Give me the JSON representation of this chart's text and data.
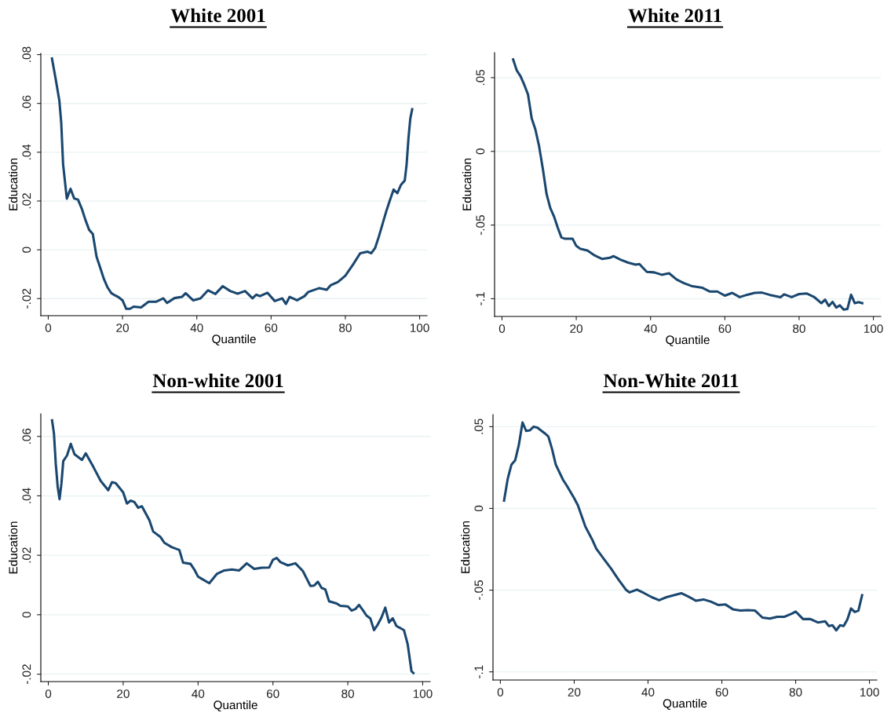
{
  "chart_data": [
    {
      "type": "line",
      "title": "White 2001",
      "xlabel": "Quantile",
      "ylabel": "Education",
      "grid": "y",
      "xlim": [
        -2,
        102
      ],
      "ylim": [
        -0.027,
        0.0805
      ],
      "xticks": [
        0,
        20,
        40,
        60,
        80,
        100
      ],
      "yticks": [
        {
          "value": -0.02,
          "label": "-.02"
        },
        0,
        {
          "value": 0.02,
          "label": ".02"
        },
        {
          "value": 0.04,
          "label": ".04"
        },
        {
          "value": 0.06,
          "label": ".06"
        },
        {
          "value": 0.08,
          "label": ".08"
        }
      ],
      "series": [
        {
          "color": "#1a476f",
          "x": [
            1,
            2,
            3,
            3.5,
            4,
            5,
            6,
            7,
            8,
            9,
            10,
            11,
            12,
            13,
            14,
            15,
            16,
            17,
            18,
            19,
            20,
            21,
            22,
            23,
            25,
            27,
            29,
            31,
            32,
            34,
            36,
            37,
            39,
            41,
            43,
            45,
            47,
            49,
            51,
            53,
            55,
            56,
            57,
            59,
            61,
            63,
            64,
            65,
            67,
            69,
            70,
            73,
            75,
            76,
            78,
            80,
            82,
            84,
            86,
            87,
            88,
            89,
            91,
            92,
            93,
            94,
            95,
            96,
            96.5,
            97,
            97.5,
            98
          ],
          "values": [
            0.0784,
            0.07,
            0.061,
            0.052,
            0.035,
            0.021,
            0.025,
            0.021,
            0.0206,
            0.017,
            0.0123,
            0.0082,
            0.0065,
            -0.0028,
            -0.0074,
            -0.012,
            -0.0155,
            -0.0178,
            -0.0187,
            -0.0195,
            -0.0207,
            -0.0242,
            -0.0242,
            -0.0233,
            -0.0236,
            -0.0213,
            -0.0213,
            -0.0199,
            -0.0218,
            -0.0198,
            -0.0193,
            -0.0178,
            -0.0207,
            -0.0199,
            -0.0166,
            -0.0181,
            -0.0149,
            -0.0169,
            -0.018,
            -0.0169,
            -0.0199,
            -0.0184,
            -0.019,
            -0.0176,
            -0.021,
            -0.0199,
            -0.0222,
            -0.0193,
            -0.0207,
            -0.019,
            -0.0173,
            -0.0157,
            -0.0164,
            -0.0146,
            -0.0132,
            -0.0106,
            -0.0062,
            -0.0014,
            -0.0008,
            -0.0014,
            0.0007,
            0.0053,
            0.0157,
            0.0203,
            0.0247,
            0.0232,
            0.0267,
            0.0284,
            0.035,
            0.0458,
            0.0539,
            0.0576
          ]
        }
      ]
    },
    {
      "type": "line",
      "title": "White 2011",
      "xlabel": "Quantile",
      "ylabel": "Education",
      "grid": "y",
      "xlim": [
        -2,
        102
      ],
      "ylim": [
        -0.112,
        0.067
      ],
      "xticks": [
        0,
        20,
        40,
        60,
        80,
        100
      ],
      "yticks": [
        {
          "value": -0.1,
          "label": "-.1"
        },
        {
          "value": -0.05,
          "label": "-.05"
        },
        0,
        {
          "value": 0.05,
          "label": ".05"
        }
      ],
      "series": [
        {
          "color": "#1a476f",
          "x": [
            3,
            4,
            5,
            6,
            7,
            8,
            9,
            10,
            11,
            12,
            13,
            14,
            15,
            16,
            17,
            19,
            20,
            21,
            23,
            25,
            27,
            29,
            30,
            32,
            34,
            36,
            37,
            39,
            41,
            43,
            45,
            47,
            49,
            51,
            54,
            56,
            58,
            60,
            62,
            64,
            66,
            68,
            70,
            72,
            75,
            76,
            78,
            80,
            82,
            84,
            86,
            87,
            88,
            89,
            90,
            91,
            92,
            93,
            94,
            95,
            96,
            97
          ],
          "values": [
            0.0624,
            0.0548,
            0.051,
            0.0452,
            0.0386,
            0.0224,
            0.0148,
            0.0034,
            -0.0118,
            -0.0289,
            -0.0384,
            -0.0441,
            -0.0517,
            -0.0584,
            -0.0593,
            -0.0593,
            -0.0641,
            -0.066,
            -0.0673,
            -0.0707,
            -0.073,
            -0.0722,
            -0.0711,
            -0.0736,
            -0.0755,
            -0.0768,
            -0.0764,
            -0.0818,
            -0.0821,
            -0.0837,
            -0.0827,
            -0.0869,
            -0.0894,
            -0.0913,
            -0.0926,
            -0.0951,
            -0.0951,
            -0.0979,
            -0.096,
            -0.0989,
            -0.0973,
            -0.096,
            -0.0958,
            -0.0973,
            -0.0989,
            -0.097,
            -0.0989,
            -0.0968,
            -0.0964,
            -0.0987,
            -0.103,
            -0.1006,
            -0.1049,
            -0.1021,
            -0.1059,
            -0.1045,
            -0.1074,
            -0.107,
            -0.0973,
            -0.103,
            -0.1023,
            -0.103
          ]
        }
      ]
    },
    {
      "type": "line",
      "title": "Non-white 2001",
      "xlabel": "Quantile",
      "ylabel": "Education",
      "grid": "y",
      "xlim": [
        -2,
        102
      ],
      "ylim": [
        -0.0225,
        0.0676
      ],
      "xticks": [
        0,
        20,
        40,
        60,
        80,
        100
      ],
      "yticks": [
        {
          "value": -0.02,
          "label": "-.02"
        },
        0,
        {
          "value": 0.02,
          "label": ".02"
        },
        {
          "value": 0.04,
          "label": ".04"
        },
        {
          "value": 0.06,
          "label": ".06"
        }
      ],
      "series": [
        {
          "color": "#1a476f",
          "x": [
            1,
            1.5,
            2,
            2.5,
            3,
            3.5,
            4,
            5,
            6,
            7,
            9,
            10,
            12,
            14,
            16,
            17,
            18,
            20,
            21,
            22,
            23,
            24,
            25,
            27,
            28,
            30,
            31,
            33,
            35,
            36,
            38,
            39,
            40,
            43,
            45,
            47,
            49,
            51,
            53,
            55,
            57,
            59,
            60,
            61,
            62,
            64,
            66,
            68,
            70,
            71,
            72,
            73,
            74,
            75,
            77,
            78,
            80,
            81,
            82,
            83,
            84,
            85,
            86,
            87,
            88,
            89,
            90,
            91,
            92,
            93,
            95,
            96,
            97,
            97.5
          ],
          "values": [
            0.0654,
            0.0611,
            0.0507,
            0.0431,
            0.0389,
            0.0441,
            0.0517,
            0.0536,
            0.0575,
            0.054,
            0.0521,
            0.0543,
            0.0498,
            0.045,
            0.0419,
            0.0446,
            0.0443,
            0.0412,
            0.0374,
            0.0384,
            0.0379,
            0.036,
            0.0365,
            0.0318,
            0.028,
            0.0261,
            0.0242,
            0.0227,
            0.0218,
            0.0175,
            0.0171,
            0.0152,
            0.0128,
            0.0106,
            0.0137,
            0.0149,
            0.0152,
            0.0149,
            0.0173,
            0.0154,
            0.0158,
            0.0159,
            0.0185,
            0.0191,
            0.0177,
            0.0166,
            0.0173,
            0.0147,
            0.0097,
            0.0098,
            0.0111,
            0.009,
            0.0085,
            0.0045,
            0.0038,
            0.003,
            0.0028,
            0.0014,
            0.0019,
            0.0033,
            0.0016,
            -0.0003,
            -0.0012,
            -0.0052,
            -0.0033,
            -0.0009,
            0.0024,
            -0.0026,
            -0.0012,
            -0.0038,
            -0.0052,
            -0.01,
            -0.019,
            -0.0196
          ]
        }
      ]
    },
    {
      "type": "line",
      "title": "Non-White 2011",
      "xlabel": "Quantile",
      "ylabel": "Education",
      "grid": "y",
      "xlim": [
        -2,
        102
      ],
      "ylim": [
        -0.105,
        0.0574
      ],
      "xticks": [
        0,
        20,
        40,
        60,
        80,
        100
      ],
      "yticks": [
        {
          "value": -0.1,
          "label": "-.1"
        },
        {
          "value": -0.05,
          "label": "-.05"
        },
        0,
        {
          "value": 0.05,
          "label": ".05"
        }
      ],
      "series": [
        {
          "color": "#1a476f",
          "x": [
            1,
            2,
            3,
            4,
            5,
            6,
            7,
            8,
            9,
            10,
            12,
            13,
            14,
            15,
            17,
            18,
            20,
            21,
            23,
            25,
            26,
            28,
            30,
            32,
            34,
            35,
            37,
            39,
            41,
            43,
            45,
            47,
            49,
            51,
            53,
            55,
            57,
            59,
            61,
            63,
            65,
            67,
            69,
            71,
            73,
            75,
            77,
            79,
            80,
            82,
            84,
            86,
            88,
            89,
            90,
            91,
            92,
            93,
            94,
            95,
            96,
            97,
            98
          ],
          "values": [
            0.0048,
            0.0182,
            0.0268,
            0.0294,
            0.0388,
            0.0526,
            0.0474,
            0.0478,
            0.05,
            0.0495,
            0.046,
            0.044,
            0.0363,
            0.0268,
            0.0174,
            0.0139,
            0.0062,
            0.0019,
            -0.011,
            -0.0196,
            -0.0247,
            -0.0308,
            -0.0368,
            -0.0436,
            -0.0497,
            -0.0514,
            -0.0497,
            -0.0519,
            -0.0543,
            -0.0562,
            -0.0543,
            -0.0531,
            -0.0519,
            -0.054,
            -0.0565,
            -0.0557,
            -0.057,
            -0.0591,
            -0.0588,
            -0.0617,
            -0.0625,
            -0.0622,
            -0.0625,
            -0.0668,
            -0.0674,
            -0.0663,
            -0.0663,
            -0.0643,
            -0.0631,
            -0.0677,
            -0.0677,
            -0.0698,
            -0.0691,
            -0.072,
            -0.0715,
            -0.0746,
            -0.0715,
            -0.072,
            -0.068,
            -0.0612,
            -0.0634,
            -0.0625,
            -0.0531
          ]
        }
      ]
    }
  ]
}
